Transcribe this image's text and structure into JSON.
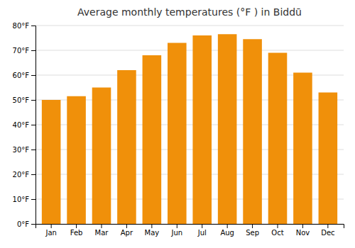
{
  "chart_data": {
    "type": "bar",
    "title": "Average monthly temperatures (°F ) in Biddū",
    "categories": [
      "Jan",
      "Feb",
      "Mar",
      "Apr",
      "May",
      "Jun",
      "Jul",
      "Aug",
      "Sep",
      "Oct",
      "Nov",
      "Dec"
    ],
    "values": [
      50,
      51.5,
      55,
      62,
      68,
      73,
      76,
      76.5,
      74.5,
      69,
      61,
      53
    ],
    "color": "#F0900A",
    "ylim": [
      0,
      80
    ],
    "yticks": [
      {
        "value": 0,
        "label": "0°F"
      },
      {
        "value": 10,
        "label": "10°F"
      },
      {
        "value": 20,
        "label": "20°F"
      },
      {
        "value": 30,
        "label": "30°F"
      },
      {
        "value": 40,
        "label": "40°F"
      },
      {
        "value": 50,
        "label": "50°F"
      },
      {
        "value": 60,
        "label": "60°F"
      },
      {
        "value": 70,
        "label": "70°F"
      },
      {
        "value": 80,
        "label": "80°F"
      }
    ],
    "grid": true
  }
}
